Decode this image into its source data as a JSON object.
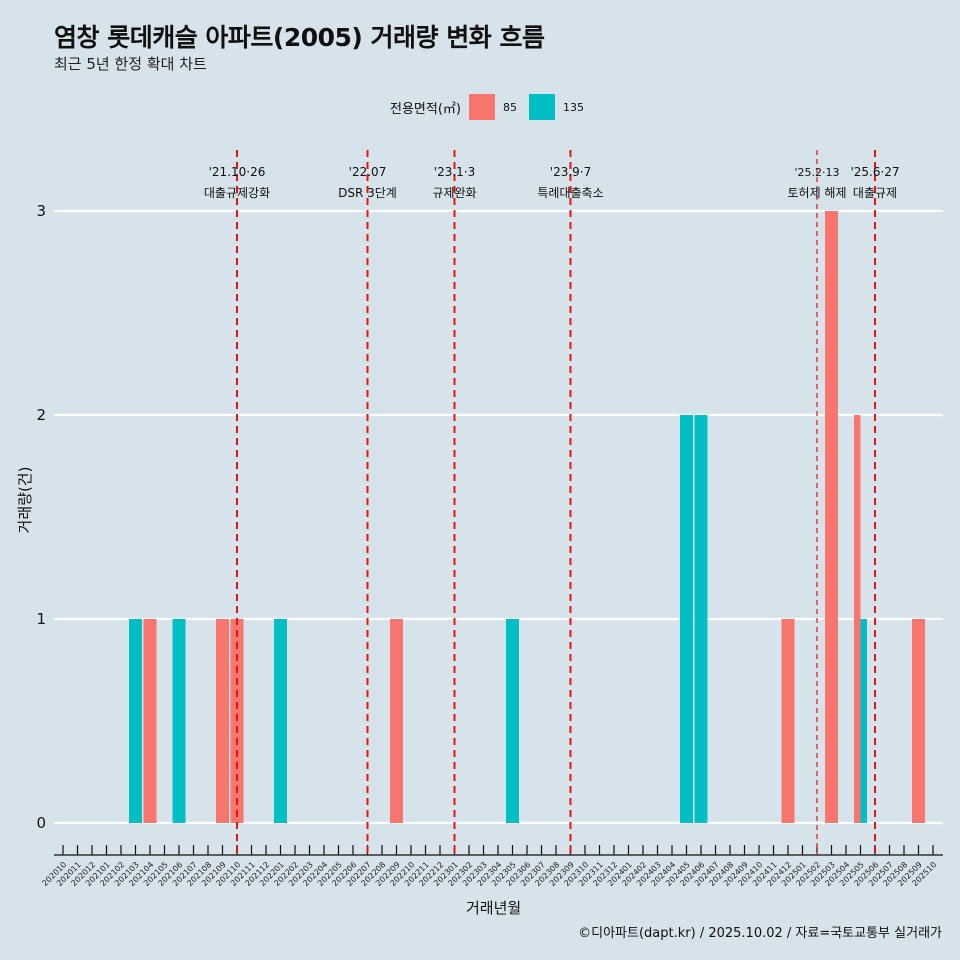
{
  "title": "염창 롯데캐슬 아파트(2005) 거래량 변화 흐름",
  "subtitle": "최근 5년 한정 확대 차트",
  "caption": "©디아파트(dapt.kr) / 2025.10.02 / 자료=국토교통부 실거래가",
  "legend": {
    "title": "전용면적(㎡)",
    "items": [
      {
        "label": "85",
        "color": "#f8766d"
      },
      {
        "label": "135",
        "color": "#00bfc4"
      }
    ]
  },
  "chart_data": {
    "type": "bar",
    "title": "염창 롯데캐슬 아파트(2005) 거래량 변화 흐름",
    "xlabel": "거래년월",
    "ylabel": "거래량(건)",
    "ylim": [
      0,
      3
    ],
    "yticks": [
      "0",
      "1",
      "2",
      "3"
    ],
    "grid": true,
    "legend_position": "top",
    "categories": [
      "202010",
      "202011",
      "202012",
      "202101",
      "202102",
      "202103",
      "202104",
      "202105",
      "202106",
      "202107",
      "202108",
      "202109",
      "202110",
      "202111",
      "202112",
      "202201",
      "202202",
      "202203",
      "202204",
      "202205",
      "202206",
      "202207",
      "202208",
      "202209",
      "202210",
      "202211",
      "202212",
      "202301",
      "202302",
      "202303",
      "202304",
      "202305",
      "202306",
      "202307",
      "202308",
      "202309",
      "202310",
      "202311",
      "202312",
      "202401",
      "202402",
      "202403",
      "202404",
      "202405",
      "202406",
      "202407",
      "202408",
      "202409",
      "202410",
      "202411",
      "202412",
      "202501",
      "202502",
      "202503",
      "202504",
      "202505",
      "202506",
      "202507",
      "202508",
      "202509",
      "202510"
    ],
    "series": [
      {
        "name": "85",
        "color": "#f8766d",
        "points": [
          {
            "x": "202104",
            "y": 1
          },
          {
            "x": "202109",
            "y": 1
          },
          {
            "x": "202110",
            "y": 1
          },
          {
            "x": "202209",
            "y": 1
          },
          {
            "x": "202412",
            "y": 1
          },
          {
            "x": "202503",
            "y": 3
          },
          {
            "x": "202505",
            "y": 2
          },
          {
            "x": "202509",
            "y": 1
          }
        ]
      },
      {
        "name": "135",
        "color": "#00bfc4",
        "points": [
          {
            "x": "202103",
            "y": 1
          },
          {
            "x": "202106",
            "y": 1
          },
          {
            "x": "202201",
            "y": 1
          },
          {
            "x": "202305",
            "y": 1
          },
          {
            "x": "202405",
            "y": 2
          },
          {
            "x": "202406",
            "y": 2
          },
          {
            "x": "202505",
            "y": 1
          }
        ]
      }
    ],
    "annotations": [
      {
        "x": "202110",
        "date": "'21.10·26",
        "label": "대출규제강화",
        "line_color": "#ee1111",
        "thin": false
      },
      {
        "x": "202207",
        "date": "'22.07",
        "label": "DSR 3단계",
        "line_color": "#ee1111",
        "thin": false
      },
      {
        "x": "202301",
        "date": "'23.1·3",
        "label": "규제완화",
        "line_color": "#ee1111",
        "thin": false
      },
      {
        "x": "202309",
        "date": "'23.9·7",
        "label": "특례대출축소",
        "line_color": "#ee1111",
        "thin": false
      },
      {
        "x": "202502",
        "date": "'25.2·13",
        "label": "토허제 해제",
        "line_color": "#ee1111",
        "thin": true
      },
      {
        "x": "202506",
        "date": "'25.6·27",
        "label": "대출규제",
        "line_color": "#ee1111",
        "thin": false
      }
    ]
  }
}
